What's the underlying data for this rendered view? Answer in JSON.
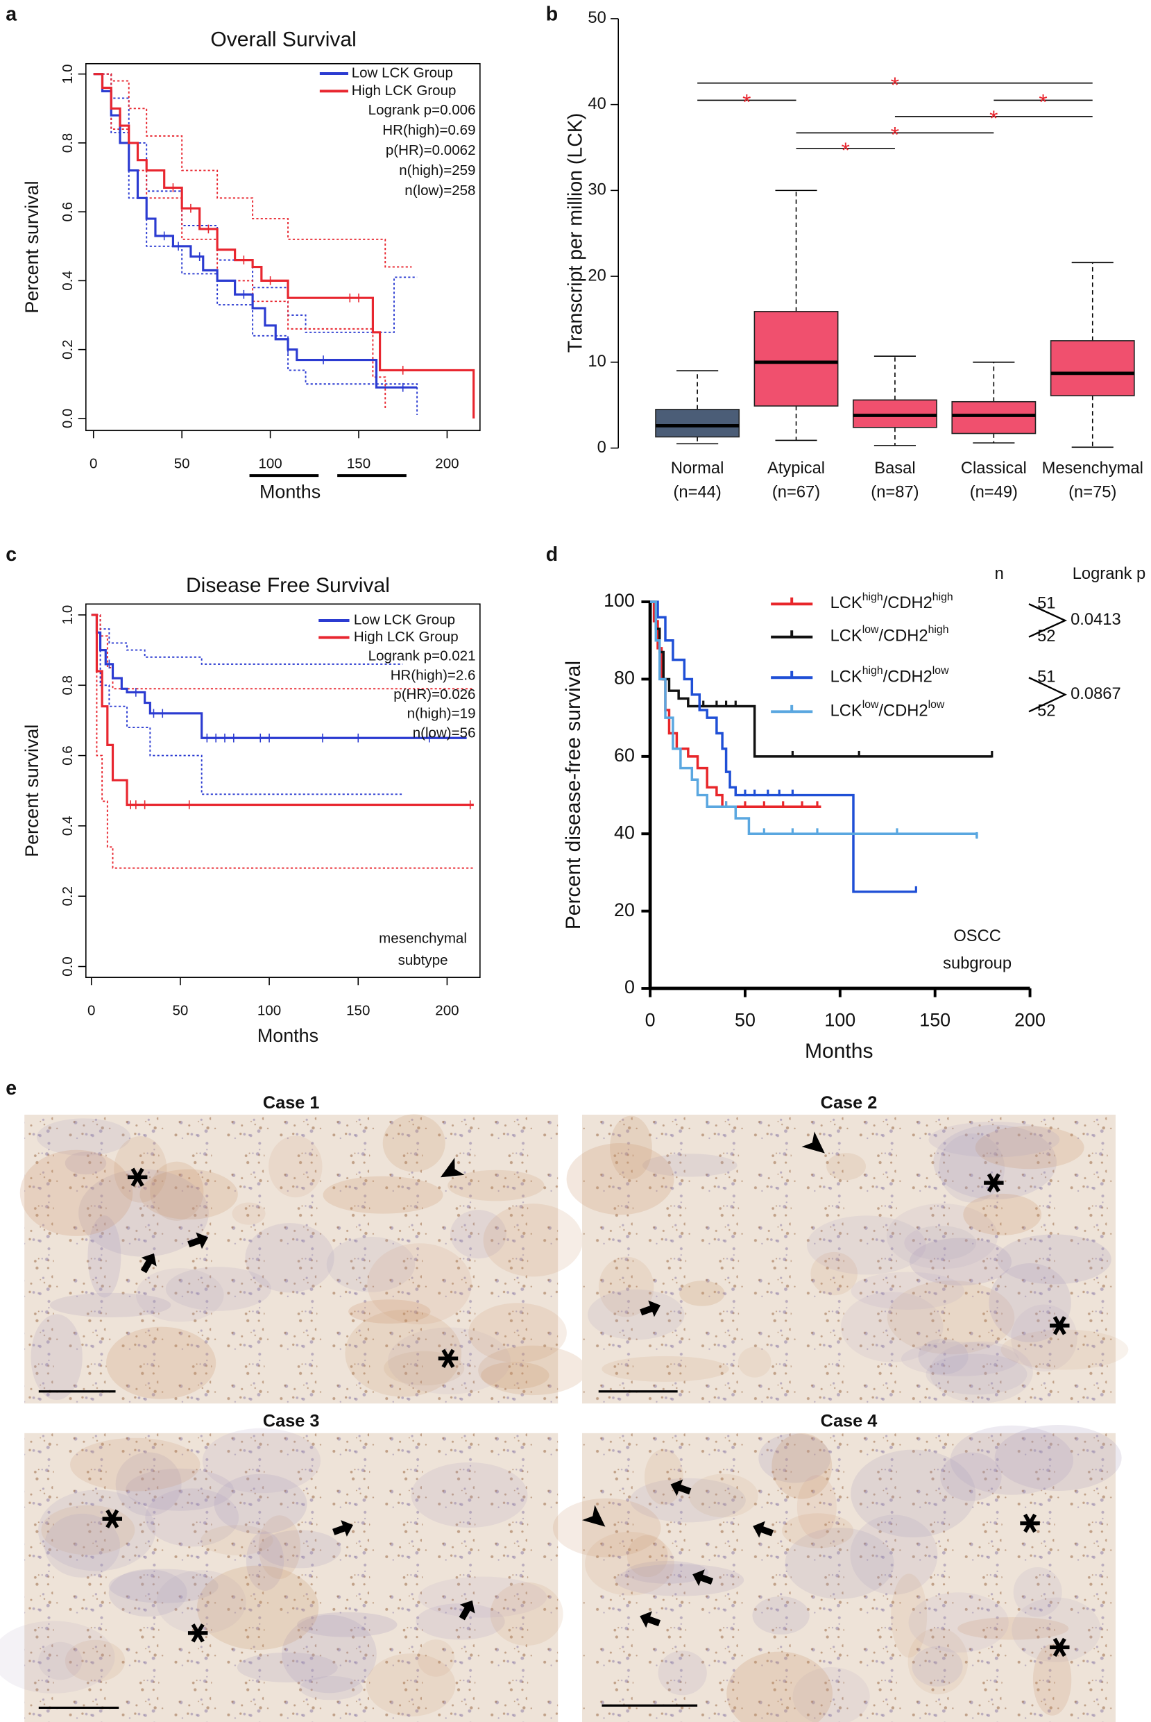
{
  "chart_data": [
    {
      "panel": "a",
      "type": "survival",
      "title": "Overall Survival",
      "xlabel": "Months",
      "ylabel": "Percent survival",
      "xlim": [
        -4.3,
        218.6
      ],
      "ylim": [
        -0.035,
        1.03
      ],
      "xticks": [
        0,
        50,
        100,
        150,
        200
      ],
      "yticks": [
        {
          "value": 0,
          "label": "0.0"
        },
        0.2,
        0.4,
        0.6,
        0.8,
        {
          "value": 1,
          "label": "1.0"
        }
      ],
      "box": true,
      "step": "post",
      "series": [
        {
          "name": "Low LCK Group",
          "color": "#2b3bd1",
          "x": [
            0,
            5,
            10,
            15,
            20,
            25,
            30,
            35,
            45,
            55,
            62,
            70,
            80,
            90,
            97,
            103,
            110,
            115,
            160,
            183
          ],
          "values": [
            1,
            0.95,
            0.88,
            0.8,
            0.72,
            0.64,
            0.58,
            0.53,
            0.5,
            0.47,
            0.43,
            0.4,
            0.36,
            0.32,
            0.27,
            0.23,
            0.2,
            0.17,
            0.09,
            0.09
          ],
          "censored": [
            40,
            48,
            60,
            85,
            110,
            130,
            175
          ]
        },
        {
          "name": "High LCK Group",
          "color": "#e8262f",
          "x": [
            0,
            5,
            10,
            15,
            20,
            25,
            30,
            40,
            50,
            60,
            70,
            80,
            90,
            95,
            110,
            158,
            162,
            215
          ],
          "values": [
            1,
            0.96,
            0.9,
            0.85,
            0.8,
            0.75,
            0.72,
            0.67,
            0.61,
            0.55,
            0.49,
            0.46,
            0.44,
            0.4,
            0.35,
            0.25,
            0.14,
            0
          ],
          "censored": [
            45,
            55,
            65,
            85,
            100,
            145,
            150,
            175
          ]
        },
        {
          "color": "#2b3bd1",
          "dash": true,
          "x": [
            0,
            10,
            20,
            30,
            50,
            70,
            90,
            110,
            120,
            165,
            170,
            183
          ],
          "values": [
            1,
            0.93,
            0.8,
            0.66,
            0.56,
            0.46,
            0.38,
            0.3,
            0.25,
            0.25,
            0.41,
            0.41
          ]
        },
        {
          "color": "#2b3bd1",
          "dash": true,
          "x": [
            0,
            10,
            20,
            30,
            50,
            70,
            90,
            110,
            120,
            175,
            183
          ],
          "values": [
            1,
            0.83,
            0.64,
            0.5,
            0.42,
            0.33,
            0.24,
            0.14,
            0.1,
            0.1,
            0.01
          ]
        },
        {
          "color": "#e8262f",
          "dash": true,
          "x": [
            0,
            10,
            20,
            30,
            50,
            70,
            90,
            110,
            155,
            165,
            180
          ],
          "values": [
            1,
            0.98,
            0.9,
            0.82,
            0.72,
            0.64,
            0.58,
            0.52,
            0.52,
            0.44,
            0.44
          ]
        },
        {
          "color": "#e8262f",
          "dash": true,
          "x": [
            0,
            10,
            20,
            30,
            50,
            70,
            90,
            110,
            140,
            158,
            165
          ],
          "values": [
            1,
            0.84,
            0.72,
            0.64,
            0.52,
            0.4,
            0.34,
            0.26,
            0.26,
            0.12,
            0.03
          ]
        }
      ],
      "stats": [
        "Logrank p=0.006",
        "HR(high)=0.69",
        "p(HR)=0.0062",
        "n(high)=259",
        "n(low)=258"
      ]
    },
    {
      "panel": "b",
      "type": "box",
      "ylabel": "Transcript per million (LCK)",
      "categories": [
        "Normal",
        "Atypical",
        "Basal",
        "Classical",
        "Mesenchymal"
      ],
      "sample_sizes": [
        "(n=44)",
        "(n=67)",
        "(n=87)",
        "(n=49)",
        "(n=75)"
      ],
      "colors": [
        "#4b5d77",
        "#f0506e",
        "#f0506e",
        "#f0506e",
        "#f0506e"
      ],
      "ylim": [
        0,
        50
      ],
      "yticks": [
        0,
        10,
        20,
        30,
        40,
        50
      ],
      "stats": [
        {
          "min": 0.5,
          "q1": 1.3,
          "median": 2.6,
          "q3": 4.5,
          "max": 9.0
        },
        {
          "min": 0.9,
          "q1": 4.9,
          "median": 10.0,
          "q3": 15.9,
          "max": 30.0
        },
        {
          "min": 0.3,
          "q1": 2.4,
          "median": 3.8,
          "q3": 5.6,
          "max": 10.7
        },
        {
          "min": 0.6,
          "q1": 1.7,
          "median": 3.8,
          "q3": 5.4,
          "max": 10.0
        },
        {
          "min": 0.1,
          "q1": 6.1,
          "median": 8.7,
          "q3": 12.5,
          "max": 21.6
        }
      ],
      "significance_color": "#e8262f",
      "significance": [
        {
          "between": [
            "Normal",
            "Mesenchymal"
          ],
          "y": 42.5,
          "label": "*"
        },
        {
          "between": [
            "Normal",
            "Atypical"
          ],
          "y": 40.5,
          "label": "*"
        },
        {
          "between": [
            "Classical",
            "Mesenchymal"
          ],
          "y": 40.5,
          "label": "*"
        },
        {
          "between": [
            "Basal",
            "Mesenchymal"
          ],
          "y": 38.6,
          "label": "*"
        },
        {
          "between": [
            "Atypical",
            "Classical"
          ],
          "y": 36.7,
          "label": "*"
        },
        {
          "between": [
            "Atypical",
            "Basal"
          ],
          "y": 34.9,
          "label": "*"
        }
      ]
    },
    {
      "panel": "c",
      "type": "survival",
      "title": "Disease Free Survival",
      "xlabel": "Months",
      "ylabel": "Percent survival",
      "xlim": [
        -3.1,
        218.5
      ],
      "ylim": [
        -0.031,
        1.031
      ],
      "xticks": [
        0,
        50,
        100,
        150,
        200
      ],
      "yticks": [
        {
          "value": 0,
          "label": "0.0"
        },
        0.2,
        0.4,
        0.6,
        0.8,
        {
          "value": 1,
          "label": "1.0"
        }
      ],
      "box": true,
      "step": "post",
      "series": [
        {
          "name": "Low LCK Group",
          "color": "#2b3bd1",
          "x": [
            0,
            3,
            5,
            8,
            12,
            17,
            20,
            30,
            33,
            62,
            211
          ],
          "values": [
            1,
            0.95,
            0.9,
            0.86,
            0.82,
            0.79,
            0.78,
            0.75,
            0.72,
            0.65,
            0.65
          ],
          "censored": [
            10,
            25,
            35,
            40,
            65,
            70,
            75,
            80,
            95,
            100,
            130,
            150,
            190
          ]
        },
        {
          "name": "High LCK Group",
          "color": "#e8262f",
          "x": [
            0,
            3,
            6,
            9,
            12,
            20,
            215
          ],
          "values": [
            1,
            0.84,
            0.74,
            0.63,
            0.53,
            0.46,
            0.46
          ],
          "censored": [
            22,
            25,
            30,
            55,
            213
          ]
        },
        {
          "color": "#2b3bd1",
          "dash": true,
          "x": [
            0,
            5,
            10,
            20,
            30,
            62,
            175
          ],
          "values": [
            1,
            0.96,
            0.92,
            0.9,
            0.88,
            0.86,
            0.86
          ]
        },
        {
          "color": "#2b3bd1",
          "dash": true,
          "x": [
            0,
            5,
            10,
            20,
            33,
            62,
            175
          ],
          "values": [
            1,
            0.8,
            0.74,
            0.68,
            0.6,
            0.49,
            0.49
          ]
        },
        {
          "color": "#e8262f",
          "dash": true,
          "x": [
            0,
            5,
            9,
            12,
            215
          ],
          "values": [
            1,
            0.94,
            0.85,
            0.79,
            0.79
          ]
        },
        {
          "color": "#e8262f",
          "dash": true,
          "x": [
            0,
            3,
            6,
            9,
            12,
            215
          ],
          "values": [
            1,
            0.6,
            0.47,
            0.34,
            0.28,
            0.28
          ]
        }
      ],
      "stats": [
        "Logrank p=0.021",
        "HR(high)=2.6",
        "p(HR)=0.026",
        "n(high)=19",
        "n(low)=56"
      ],
      "note": [
        "mesenchymal",
        "subtype"
      ]
    },
    {
      "panel": "d",
      "type": "survival",
      "xlabel": "Months",
      "ylabel": "Percent disease-free survival",
      "xlim": [
        0,
        200
      ],
      "ylim": [
        0,
        100
      ],
      "xticks": [
        0,
        50,
        100,
        150,
        200
      ],
      "yticks": [
        0,
        20,
        40,
        60,
        80,
        100
      ],
      "box": false,
      "step": "post",
      "series": [
        {
          "name": [
            "LCK",
            "high",
            "/CDH2",
            "high"
          ],
          "color": "#e8262a",
          "x": [
            0,
            2,
            4,
            6,
            8,
            10,
            14,
            20,
            25,
            30,
            35,
            38,
            90
          ],
          "values": [
            100,
            95,
            88,
            80,
            72,
            66,
            62,
            60,
            57,
            52,
            50,
            47,
            47
          ],
          "censored": [
            40,
            50,
            60,
            70,
            80,
            88
          ]
        },
        {
          "name": [
            "LCK",
            "low",
            "/CDH2",
            "high"
          ],
          "color": "#111111",
          "x": [
            0,
            3,
            5,
            7,
            10,
            15,
            20,
            55,
            180
          ],
          "values": [
            100,
            93,
            87,
            80,
            77,
            75,
            73,
            60,
            60
          ],
          "censored": [
            28,
            35,
            40,
            45,
            75,
            110,
            180
          ]
        },
        {
          "name": [
            "LCK",
            "high",
            "/CDH2",
            "low"
          ],
          "color": "#1f4fd6",
          "x": [
            0,
            4,
            8,
            12,
            18,
            22,
            26,
            30,
            35,
            38,
            40,
            42,
            45,
            107,
            140
          ],
          "values": [
            100,
            96,
            90,
            85,
            80,
            76,
            72,
            70,
            66,
            62,
            56,
            52,
            50,
            25,
            25
          ],
          "censored": [
            50,
            55,
            62,
            68,
            75,
            140
          ]
        },
        {
          "name": [
            "LCK",
            "low",
            "/CDH2",
            "low"
          ],
          "color": "#5aa7e0",
          "x": [
            0,
            3,
            5,
            8,
            12,
            16,
            22,
            25,
            30,
            45,
            52,
            172
          ],
          "values": [
            100,
            90,
            80,
            70,
            62,
            57,
            54,
            50,
            47,
            44,
            40,
            39
          ],
          "censored": [
            30,
            40,
            60,
            75,
            88,
            130,
            172
          ]
        }
      ],
      "n_header": "n",
      "n": [
        51,
        52,
        51,
        52
      ],
      "logrank_header": "Logrank p",
      "logrank_p": [
        0.0413,
        0.0867
      ],
      "note": [
        "OSCC",
        "subgroup"
      ]
    }
  ],
  "panel_e": {
    "label": "e",
    "cases": [
      "Case 1",
      "Case 2",
      "Case 3",
      "Case 4"
    ]
  }
}
